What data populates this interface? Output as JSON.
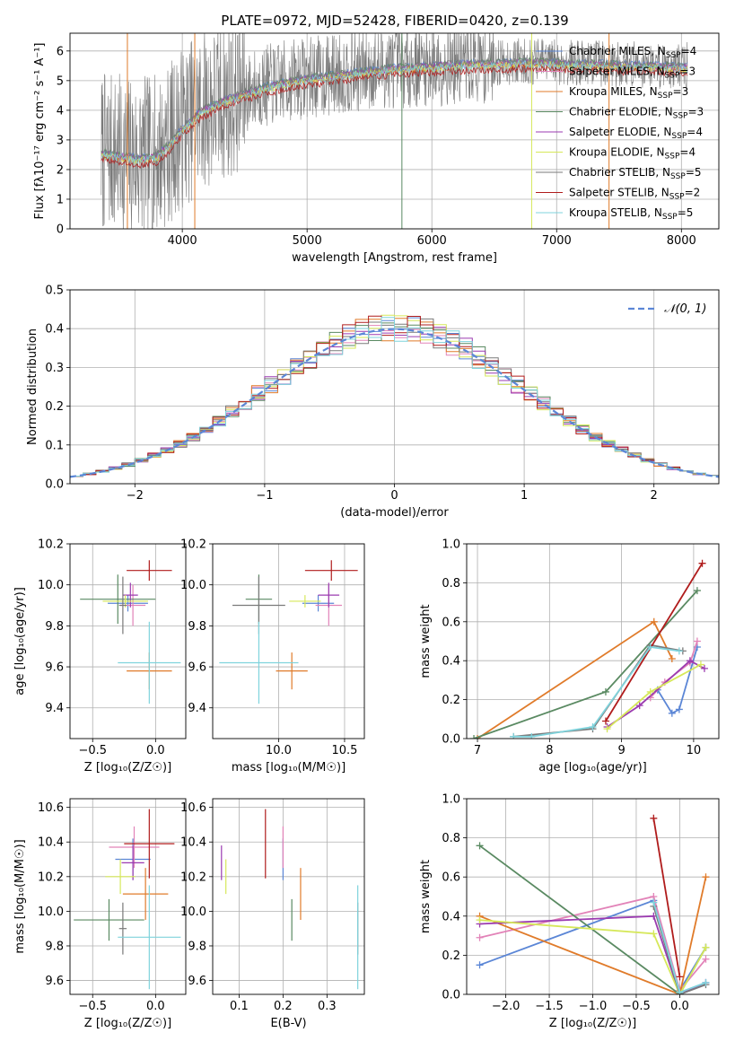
{
  "figure_title": "PLATE=0972, MJD=52428, FIBERID=0420, z=0.139",
  "colors": {
    "Chabrier MILES": "#5b86d6",
    "Salpeter MILES": "#e283b8",
    "Kroupa MILES": "#e07b2a",
    "Chabrier ELODIE": "#5a8a62",
    "Salpeter ELODIE": "#9b3bb0",
    "Kroupa ELODIE": "#d6e85a",
    "Chabrier STELIB": "#7a7a7a",
    "Salpeter STELIB": "#b01c1c",
    "Kroupa STELIB": "#7fd3dc",
    "gauss": "#5b86d6"
  },
  "chart_data": [
    {
      "id": "spectrum",
      "type": "line",
      "title": "PLATE=0972, MJD=52428, FIBERID=0420, z=0.139",
      "xlabel": "wavelength [Angstrom, rest frame]",
      "ylabel": "Flux [fλ10⁻¹⁷ erg cm⁻² s⁻¹ A⁻¹]",
      "xlim": [
        3100,
        8300
      ],
      "ylim": [
        0,
        6.6
      ],
      "xticks": [
        4000,
        5000,
        6000,
        7000,
        8000
      ],
      "yticks": [
        0,
        1,
        2,
        3,
        4,
        5,
        6
      ],
      "grid": true,
      "legend": "top-right",
      "continuum": {
        "x": [
          3300,
          3500,
          3650,
          3800,
          3900,
          4000,
          4150,
          4300,
          4500,
          4700,
          4900,
          5100,
          5300,
          5500,
          5700,
          5900,
          6100,
          6300,
          6500,
          6700,
          6900,
          7100,
          7300,
          7500,
          7700,
          7900,
          8100
        ],
        "y": [
          2.6,
          2.5,
          2.4,
          2.5,
          2.9,
          3.4,
          4.0,
          4.3,
          4.6,
          4.85,
          5.05,
          5.15,
          5.25,
          5.35,
          5.45,
          5.5,
          5.55,
          5.6,
          5.6,
          5.65,
          5.65,
          5.6,
          5.6,
          5.55,
          5.55,
          5.5,
          5.5
        ]
      },
      "series": [
        {
          "name": "Chabrier MILES, N_SSP=4",
          "label_main": "Chabrier MILES, N",
          "sub": "SSP",
          "label_end": "=4"
        },
        {
          "name": "Salpeter MILES, N_SSP=3",
          "label_main": "Salpeter MILES, N",
          "sub": "SSP",
          "label_end": "=3"
        },
        {
          "name": "Kroupa MILES, N_SSP=3",
          "label_main": "Kroupa MILES, N",
          "sub": "SSP",
          "label_end": "=3"
        },
        {
          "name": "Chabrier ELODIE, N_SSP=3",
          "label_main": "Chabrier ELODIE, N",
          "sub": "SSP",
          "label_end": "=3"
        },
        {
          "name": "Salpeter ELODIE, N_SSP=4",
          "label_main": "Salpeter ELODIE, N",
          "sub": "SSP",
          "label_end": "=4"
        },
        {
          "name": "Kroupa ELODIE, N_SSP=4",
          "label_main": "Kroupa ELODIE, N",
          "sub": "SSP",
          "label_end": "=4"
        },
        {
          "name": "Chabrier STELIB, N_SSP=5",
          "label_main": "Chabrier STELIB, N",
          "sub": "SSP",
          "label_end": "=5"
        },
        {
          "name": "Salpeter STELIB, N_SSP=2",
          "label_main": "Salpeter STELIB, N",
          "sub": "SSP",
          "label_end": "=2"
        },
        {
          "name": "Kroupa STELIB, N_SSP=5",
          "label_main": "Kroupa STELIB, N",
          "sub": "SSP",
          "label_end": "=5"
        }
      ],
      "vertical_spikes": [
        {
          "x": 3560,
          "series": "Kroupa MILES"
        },
        {
          "x": 4100,
          "series": "Kroupa MILES"
        },
        {
          "x": 5760,
          "series": "Chabrier ELODIE"
        },
        {
          "x": 6800,
          "series": "Kroupa ELODIE"
        },
        {
          "x": 7420,
          "series": "Kroupa MILES"
        }
      ]
    },
    {
      "id": "residuals",
      "type": "step",
      "xlabel": "(data-model)/error",
      "ylabel": "Normed distribution",
      "xlim": [
        -2.5,
        2.5
      ],
      "ylim": [
        0,
        0.5
      ],
      "xticks": [
        -2,
        -1,
        0,
        1,
        2
      ],
      "yticks": [
        0.0,
        0.1,
        0.2,
        0.3,
        0.4,
        0.5
      ],
      "grid": true,
      "legend": "top-right",
      "gauss_label": "𝒩(0, 1)",
      "bin_width": 0.1
    },
    {
      "id": "age_vs_Z",
      "type": "errorbar",
      "xlabel": "Z [log₁₀(Z/Z☉)]",
      "ylabel": "age [log₁₀(age/yr)]",
      "xlim": [
        -0.68,
        0.24
      ],
      "ylim": [
        9.25,
        10.2
      ],
      "xticks": [
        -0.5,
        0.0
      ],
      "yticks": [
        9.4,
        9.6,
        9.8,
        10.0,
        10.2
      ],
      "points": [
        {
          "series": "Chabrier MILES",
          "x": -0.22,
          "xerr": 0.16,
          "y": 9.91,
          "yerr": 0.04
        },
        {
          "series": "Salpeter MILES",
          "x": -0.18,
          "xerr": 0.1,
          "y": 9.9,
          "yerr": 0.1
        },
        {
          "series": "Kroupa MILES",
          "x": -0.05,
          "xerr": 0.18,
          "y": 9.58,
          "yerr": 0.09
        },
        {
          "series": "Chabrier ELODIE",
          "x": -0.3,
          "xerr": 0.3,
          "y": 9.93,
          "yerr": 0.12
        },
        {
          "series": "Salpeter ELODIE",
          "x": -0.2,
          "xerr": 0.06,
          "y": 9.95,
          "yerr": 0.06
        },
        {
          "series": "Kroupa ELODIE",
          "x": -0.24,
          "xerr": 0.18,
          "y": 9.92,
          "yerr": 0.03
        },
        {
          "series": "Chabrier STELIB",
          "x": -0.26,
          "xerr": 0.03,
          "y": 9.9,
          "yerr": 0.14
        },
        {
          "series": "Salpeter STELIB",
          "x": -0.05,
          "xerr": 0.18,
          "y": 10.07,
          "yerr": 0.05
        },
        {
          "series": "Kroupa STELIB",
          "x": -0.05,
          "xerr": 0.25,
          "y": 9.62,
          "yerr": 0.2
        }
      ]
    },
    {
      "id": "age_vs_mass",
      "type": "errorbar",
      "xlabel": "mass [log₁₀(M/M☉)]",
      "ylabel": "",
      "xlim": [
        9.5,
        10.65
      ],
      "ylim": [
        9.25,
        10.2
      ],
      "xticks": [
        10.0,
        10.5
      ],
      "yticks": [
        9.4,
        9.6,
        9.8,
        10.0,
        10.2
      ],
      "points": [
        {
          "series": "Chabrier MILES",
          "x": 10.3,
          "xerr": 0.12,
          "y": 9.91,
          "yerr": 0.04
        },
        {
          "series": "Salpeter MILES",
          "x": 10.38,
          "xerr": 0.1,
          "y": 9.9,
          "yerr": 0.1
        },
        {
          "series": "Kroupa MILES",
          "x": 10.1,
          "xerr": 0.12,
          "y": 9.58,
          "yerr": 0.09
        },
        {
          "series": "Chabrier ELODIE",
          "x": 9.85,
          "xerr": 0.1,
          "y": 9.93,
          "yerr": 0.12
        },
        {
          "series": "Salpeter ELODIE",
          "x": 10.38,
          "xerr": 0.08,
          "y": 9.95,
          "yerr": 0.06
        },
        {
          "series": "Kroupa ELODIE",
          "x": 10.2,
          "xerr": 0.12,
          "y": 9.92,
          "yerr": 0.03
        },
        {
          "series": "Chabrier STELIB",
          "x": 9.85,
          "xerr": 0.2,
          "y": 9.9,
          "yerr": 0.14
        },
        {
          "series": "Salpeter STELIB",
          "x": 10.4,
          "xerr": 0.2,
          "y": 10.07,
          "yerr": 0.05
        },
        {
          "series": "Kroupa STELIB",
          "x": 9.85,
          "xerr": 0.3,
          "y": 9.62,
          "yerr": 0.2
        }
      ]
    },
    {
      "id": "weight_vs_age",
      "type": "line",
      "xlabel": "age [log₁₀(age/yr)]",
      "ylabel": "mass weight",
      "xlim": [
        6.85,
        10.35
      ],
      "ylim": [
        0,
        1.0
      ],
      "xticks": [
        7,
        8,
        9,
        10
      ],
      "yticks": [
        0.0,
        0.2,
        0.4,
        0.6,
        0.8,
        1.0
      ],
      "series": [
        {
          "name": "Chabrier MILES",
          "x": [
            9.5,
            9.7,
            9.8,
            10.05
          ],
          "y": [
            0.25,
            0.13,
            0.15,
            0.47
          ]
        },
        {
          "name": "Salpeter MILES",
          "x": [
            9.4,
            9.6,
            9.95,
            10.05
          ],
          "y": [
            0.21,
            0.29,
            0.39,
            0.5
          ]
        },
        {
          "name": "Kroupa MILES",
          "x": [
            7.0,
            9.45,
            9.7
          ],
          "y": [
            0.0,
            0.6,
            0.41
          ]
        },
        {
          "name": "Chabrier ELODIE",
          "x": [
            6.95,
            8.78,
            10.05
          ],
          "y": [
            0.0,
            0.24,
            0.76
          ]
        },
        {
          "name": "Salpeter ELODIE",
          "x": [
            8.8,
            9.25,
            9.95,
            10.15
          ],
          "y": [
            0.06,
            0.17,
            0.4,
            0.36
          ]
        },
        {
          "name": "Kroupa ELODIE",
          "x": [
            8.8,
            9.4,
            10.1
          ],
          "y": [
            0.05,
            0.24,
            0.38
          ]
        },
        {
          "name": "Chabrier STELIB",
          "x": [
            7.5,
            8.6,
            9.4,
            9.85
          ],
          "y": [
            0.01,
            0.05,
            0.48,
            0.45
          ]
        },
        {
          "name": "Salpeter STELIB",
          "x": [
            8.78,
            10.12
          ],
          "y": [
            0.09,
            0.9
          ]
        },
        {
          "name": "Kroupa STELIB",
          "x": [
            7.5,
            7.75,
            8.6,
            9.4,
            9.8
          ],
          "y": [
            0.01,
            0.01,
            0.06,
            0.47,
            0.45
          ]
        }
      ]
    },
    {
      "id": "mass_vs_Z",
      "type": "errorbar",
      "xlabel": "Z [log₁₀(Z/Z☉)]",
      "ylabel": "mass [log₁₀(M/M☉)]",
      "xlim": [
        -0.68,
        0.24
      ],
      "ylim": [
        9.52,
        10.65
      ],
      "xticks": [
        -0.5,
        0.0
      ],
      "yticks": [
        9.6,
        9.8,
        10.0,
        10.2,
        10.4,
        10.6
      ],
      "points": [
        {
          "series": "Chabrier MILES",
          "x": -0.18,
          "xerr": 0.14,
          "y": 10.3,
          "yerr": 0.12
        },
        {
          "series": "Salpeter MILES",
          "x": -0.17,
          "xerr": 0.2,
          "y": 10.37,
          "yerr": 0.12
        },
        {
          "series": "Kroupa MILES",
          "x": -0.08,
          "xerr": 0.18,
          "y": 10.1,
          "yerr": 0.15
        },
        {
          "series": "Chabrier ELODIE",
          "x": -0.37,
          "xerr": 0.28,
          "y": 9.95,
          "yerr": 0.12
        },
        {
          "series": "Salpeter ELODIE",
          "x": -0.18,
          "xerr": 0.09,
          "y": 10.28,
          "yerr": 0.1
        },
        {
          "series": "Kroupa ELODIE",
          "x": -0.28,
          "xerr": 0.12,
          "y": 10.2,
          "yerr": 0.1
        },
        {
          "series": "Chabrier STELIB",
          "x": -0.26,
          "xerr": 0.03,
          "y": 9.9,
          "yerr": 0.15
        },
        {
          "series": "Salpeter STELIB",
          "x": -0.05,
          "xerr": 0.2,
          "y": 10.39,
          "yerr": 0.2
        },
        {
          "series": "Kroupa STELIB",
          "x": -0.05,
          "xerr": 0.25,
          "y": 9.85,
          "yerr": 0.3
        }
      ]
    },
    {
      "id": "mass_vs_ebv",
      "type": "errorbar",
      "xlabel": "E(B-V)",
      "ylabel": "",
      "xlim": [
        0.04,
        0.385
      ],
      "ylim": [
        9.52,
        10.65
      ],
      "xticks": [
        0.1,
        0.2,
        0.3
      ],
      "yticks": [
        9.6,
        9.8,
        10.0,
        10.2,
        10.4,
        10.6
      ],
      "points": [
        {
          "series": "Chabrier MILES",
          "x": 0.2,
          "yerr": 0.12,
          "y": 10.3
        },
        {
          "series": "Salpeter MILES",
          "x": 0.2,
          "yerr": 0.12,
          "y": 10.37
        },
        {
          "series": "Kroupa MILES",
          "x": 0.24,
          "yerr": 0.15,
          "y": 10.1
        },
        {
          "series": "Chabrier ELODIE",
          "x": 0.22,
          "yerr": 0.12,
          "y": 9.95
        },
        {
          "series": "Salpeter ELODIE",
          "x": 0.06,
          "yerr": 0.1,
          "y": 10.28
        },
        {
          "series": "Kroupa ELODIE",
          "x": 0.07,
          "yerr": 0.1,
          "y": 10.2
        },
        {
          "series": "Chabrier STELIB",
          "x": 0.37,
          "yerr": 0.15,
          "y": 9.9
        },
        {
          "series": "Salpeter STELIB",
          "x": 0.16,
          "yerr": 0.2,
          "y": 10.39
        },
        {
          "series": "Kroupa STELIB",
          "x": 0.37,
          "yerr": 0.3,
          "y": 9.85
        }
      ]
    },
    {
      "id": "weight_vs_Z",
      "type": "line",
      "xlabel": "Z [log₁₀(Z/Z☉)]",
      "ylabel": "mass weight",
      "xlim": [
        -2.45,
        0.45
      ],
      "ylim": [
        0,
        1.0
      ],
      "xticks": [
        -2.0,
        -1.5,
        -1.0,
        -0.5,
        0.0
      ],
      "yticks": [
        0.0,
        0.2,
        0.4,
        0.6,
        0.8,
        1.0
      ],
      "series": [
        {
          "name": "Chabrier MILES",
          "x": [
            -2.3,
            -0.3,
            0.0,
            0.3
          ],
          "y": [
            0.15,
            0.48,
            0.02,
            0.24
          ]
        },
        {
          "name": "Salpeter MILES",
          "x": [
            -2.3,
            -0.3,
            0.0,
            0.3
          ],
          "y": [
            0.29,
            0.5,
            0.02,
            0.18
          ]
        },
        {
          "name": "Kroupa MILES",
          "x": [
            -2.3,
            0.0,
            0.3
          ],
          "y": [
            0.4,
            0.0,
            0.6
          ]
        },
        {
          "name": "Chabrier ELODIE",
          "x": [
            -2.3,
            0.0,
            0.3
          ],
          "y": [
            0.76,
            0.0,
            0.24
          ]
        },
        {
          "name": "Salpeter ELODIE",
          "x": [
            -2.3,
            -0.3,
            0.0,
            0.3
          ],
          "y": [
            0.36,
            0.4,
            0.0,
            0.06
          ]
        },
        {
          "name": "Kroupa ELODIE",
          "x": [
            -2.3,
            -0.3,
            0.0,
            0.3
          ],
          "y": [
            0.38,
            0.31,
            0.0,
            0.24
          ]
        },
        {
          "name": "Chabrier STELIB",
          "x": [
            -0.3,
            0.0,
            0.3
          ],
          "y": [
            0.45,
            0.0,
            0.05
          ]
        },
        {
          "name": "Salpeter STELIB",
          "x": [
            -0.3,
            0.0
          ],
          "y": [
            0.9,
            0.09
          ]
        },
        {
          "name": "Kroupa STELIB",
          "x": [
            -0.3,
            0.0,
            0.3
          ],
          "y": [
            0.47,
            0.01,
            0.06
          ]
        }
      ]
    }
  ]
}
